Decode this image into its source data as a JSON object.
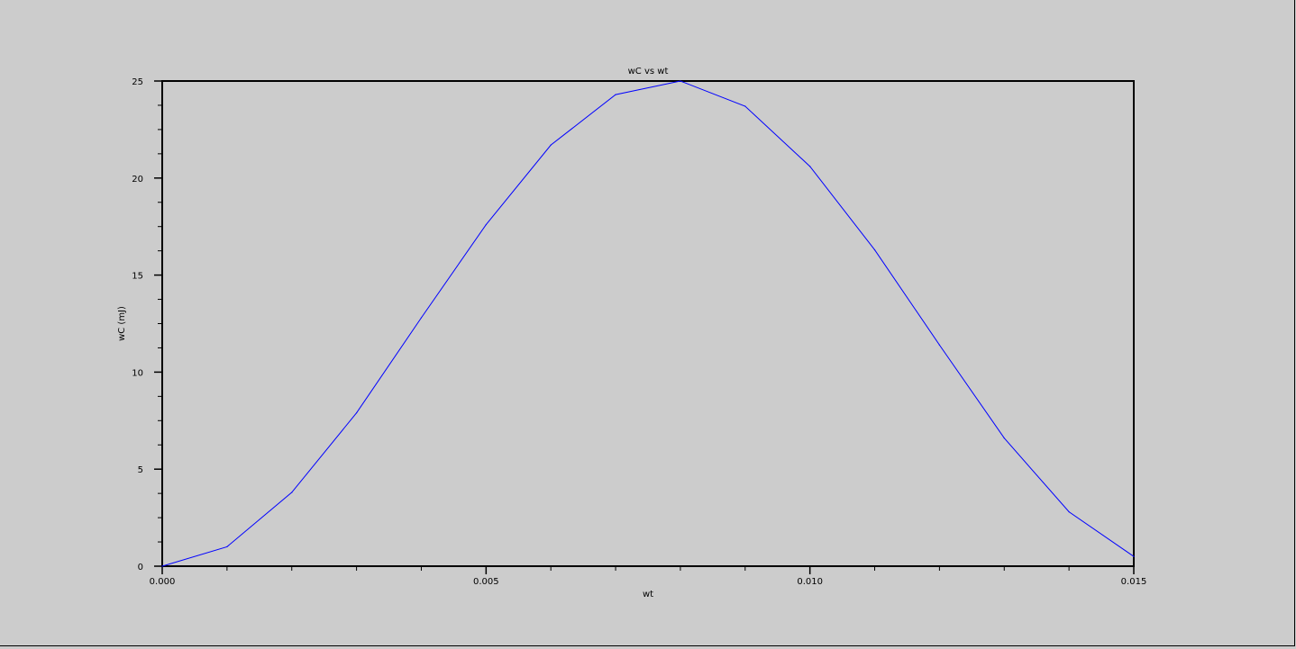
{
  "chart_data": {
    "type": "line",
    "title": "wC vs wt",
    "xlabel": "wt",
    "ylabel": "wC (mJ)",
    "xlim": [
      0,
      0.015
    ],
    "ylim": [
      0,
      25
    ],
    "x_ticks": [
      "0.000",
      "0.005",
      "0.010",
      "0.015"
    ],
    "y_ticks": [
      "0",
      "5",
      "10",
      "15",
      "20",
      "25"
    ],
    "grid": false,
    "series": [
      {
        "color": "#0000ff",
        "x": [
          0.0,
          0.001,
          0.002,
          0.003,
          0.004,
          0.005,
          0.006,
          0.007,
          0.008,
          0.009,
          0.01,
          0.011,
          0.012,
          0.013,
          0.014,
          0.015
        ],
        "y": [
          0.0,
          1.0,
          3.8,
          7.9,
          12.8,
          17.6,
          21.7,
          24.3,
          25.0,
          23.7,
          20.6,
          16.3,
          11.4,
          6.6,
          2.8,
          0.5
        ]
      }
    ]
  }
}
